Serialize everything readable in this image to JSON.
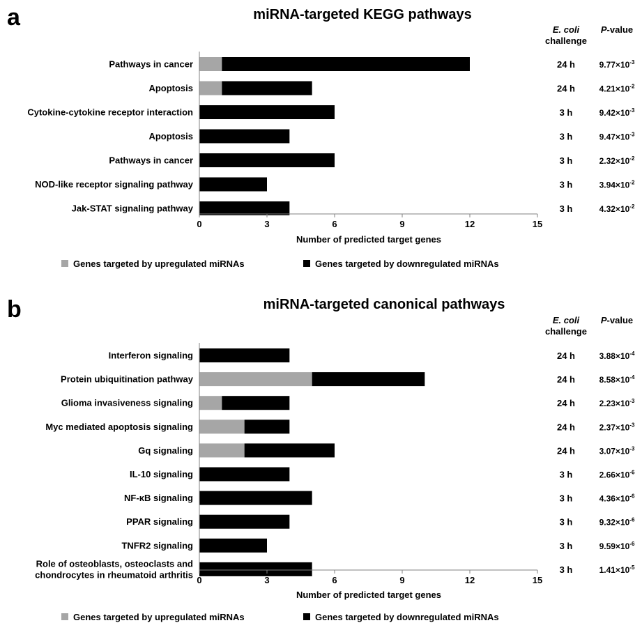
{
  "colors": {
    "up": "#a6a6a6",
    "down": "#000000",
    "axis": "#808080"
  },
  "panels": [
    {
      "letter": "a",
      "columns": {
        "challenge_line1": "E. coli",
        "challenge_line2": "challenge",
        "pvalue_italic": "P",
        "pvalue_rest": "-value"
      },
      "legend": {
        "up": "Genes targeted by upregulated miRNAs",
        "down": "Genes targeted by downregulated miRNAs"
      }
    },
    {
      "letter": "b",
      "columns": {
        "challenge_line1": "E. coli",
        "challenge_line2": "challenge",
        "pvalue_italic": "P",
        "pvalue_rest": "-value"
      },
      "legend": {
        "up": "Genes targeted by upregulated miRNAs",
        "down": "Genes targeted by downregulated miRNAs"
      }
    }
  ],
  "chart_data": [
    {
      "type": "bar",
      "orientation": "horizontal",
      "stacked": true,
      "title": "miRNA-targeted KEGG pathways",
      "xlabel": "Number of predicted target genes",
      "xlim": [
        0,
        15
      ],
      "xticks": [
        0,
        3,
        6,
        9,
        12,
        15
      ],
      "categories": [
        [
          "Pathways in cancer"
        ],
        [
          "Apoptosis"
        ],
        [
          "Cytokine-cytokine receptor interaction"
        ],
        [
          "Apoptosis"
        ],
        [
          "Pathways in cancer"
        ],
        [
          "NOD-like receptor signaling pathway"
        ],
        [
          "Jak-STAT signaling pathway"
        ]
      ],
      "series": [
        {
          "name": "Genes targeted by upregulated miRNAs",
          "values": [
            1,
            1,
            0,
            0,
            0,
            0,
            0
          ]
        },
        {
          "name": "Genes targeted by downregulated miRNAs",
          "values": [
            11,
            4,
            6,
            4,
            6,
            3,
            4
          ]
        }
      ],
      "challenge": [
        "24 h",
        "24 h",
        "3 h",
        "3 h",
        "3 h",
        "3 h",
        "3 h"
      ],
      "pvalues": [
        {
          "mantissa": "9.77×10",
          "exponent": "-3"
        },
        {
          "mantissa": "4.21×10",
          "exponent": "-2"
        },
        {
          "mantissa": "9.42×10",
          "exponent": "-3"
        },
        {
          "mantissa": "9.47×10",
          "exponent": "-3"
        },
        {
          "mantissa": "2.32×10",
          "exponent": "-2"
        },
        {
          "mantissa": "3.94×10",
          "exponent": "-2"
        },
        {
          "mantissa": "4.32×10",
          "exponent": "-2"
        }
      ],
      "legend_position": "bottom"
    },
    {
      "type": "bar",
      "orientation": "horizontal",
      "stacked": true,
      "title": "miRNA-targeted canonical pathways",
      "xlabel": "Number of predicted target genes",
      "xlim": [
        0,
        15
      ],
      "xticks": [
        0,
        3,
        6,
        9,
        12,
        15
      ],
      "categories": [
        [
          "Interferon signaling"
        ],
        [
          "Protein ubiquitination pathway"
        ],
        [
          "Glioma invasiveness signaling"
        ],
        [
          "Myc mediated apoptosis signaling"
        ],
        [
          "Gq signaling"
        ],
        [
          "IL-10 signaling"
        ],
        [
          "NF-κB signaling"
        ],
        [
          "PPAR signaling"
        ],
        [
          "TNFR2 signaling"
        ],
        [
          "Role of osteoblasts, osteoclasts and",
          "chondrocytes in rheumatoid arthritis"
        ]
      ],
      "series": [
        {
          "name": "Genes targeted by upregulated miRNAs",
          "values": [
            0,
            5,
            1,
            2,
            2,
            0,
            0,
            0,
            0,
            0
          ]
        },
        {
          "name": "Genes targeted by downregulated miRNAs",
          "values": [
            4,
            5,
            3,
            2,
            4,
            4,
            5,
            4,
            3,
            5
          ]
        }
      ],
      "challenge": [
        "24 h",
        "24 h",
        "24 h",
        "24 h",
        "24 h",
        "3 h",
        "3 h",
        "3 h",
        "3 h",
        "3 h"
      ],
      "pvalues": [
        {
          "mantissa": "3.88×10",
          "exponent": "-4"
        },
        {
          "mantissa": "8.58×10",
          "exponent": "-4"
        },
        {
          "mantissa": "2.23×10",
          "exponent": "-3"
        },
        {
          "mantissa": "2.37×10",
          "exponent": "-3"
        },
        {
          "mantissa": "3.07×10",
          "exponent": "-3"
        },
        {
          "mantissa": "2.66×10",
          "exponent": "-6"
        },
        {
          "mantissa": "4.36×10",
          "exponent": "-6"
        },
        {
          "mantissa": "9.32×10",
          "exponent": "-6"
        },
        {
          "mantissa": "9.59×10",
          "exponent": "-6"
        },
        {
          "mantissa": "1.41×10",
          "exponent": "-5"
        }
      ],
      "legend_position": "bottom"
    }
  ]
}
